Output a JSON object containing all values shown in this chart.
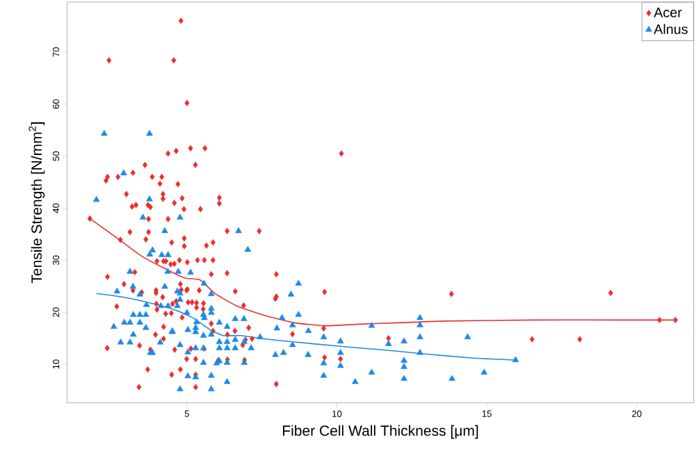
{
  "chart_data": {
    "type": "scatter",
    "xlabel": "Fiber Cell Wall Thickness [μm]",
    "ylabel": "Tensile Strength [N/mm$^{2}$]",
    "xlim": [
      1.0,
      21.9
    ],
    "ylim": [
      2.6,
      79.6
    ],
    "xticks": [
      5,
      10,
      15,
      20
    ],
    "yticks": [
      10,
      20,
      30,
      40,
      50,
      60,
      70
    ],
    "grid": false,
    "legend": "top right",
    "series": [
      {
        "name": "Acer",
        "color": "#e8302f",
        "marker": "diamond",
        "x": [
          1.76,
          4.8,
          2.4,
          4.56,
          5.0,
          10.15,
          5.12,
          5.6,
          4.37,
          4.64,
          5.28,
          3.6,
          2.3,
          2.35,
          2.7,
          3.84,
          4.16,
          3.2,
          4.1,
          4.7,
          4.2,
          4.2,
          4.84,
          6.08,
          6.08,
          4.58,
          2.98,
          3.17,
          3.3,
          3.7,
          3.78,
          4.9,
          5.45,
          4.37,
          3.72,
          3.1,
          3.72,
          6.34,
          7.41,
          3.63,
          4.91,
          4.91,
          4.49,
          5.87,
          5.65,
          2.78,
          5.35,
          5.58,
          5.87,
          5.01,
          4.75,
          4.0,
          4.22,
          4.3,
          4.46,
          4.58,
          6.34,
          5.81,
          7.98,
          2.35,
          3.26,
          2.9,
          3.2,
          3.49,
          3.97,
          3.97,
          4.78,
          4.81,
          4.99,
          5.01,
          5.41,
          6.61,
          9.59,
          13.82,
          19.13,
          2.66,
          4.19,
          4.52,
          4.64,
          5.04,
          5.17,
          5.32,
          5.32,
          5.55,
          5.54,
          3.98,
          4.0,
          4.29,
          4.48,
          4.84,
          6.89,
          7.95,
          7.98,
          9.56,
          5.81,
          4.22,
          5.87,
          6.6,
          7.06,
          6.35,
          3.95,
          4.22,
          3.42,
          2.34,
          3.78,
          4.59,
          5.13,
          5.57,
          6.86,
          6.95,
          7.17,
          8.52,
          11.72,
          16.51,
          18.1,
          20.76,
          21.29,
          3.69,
          4.99,
          5.29,
          6.05,
          6.35,
          6.92,
          9.59,
          10.12,
          4.49,
          4.78,
          5.29,
          7.98,
          3.4,
          5.29
        ],
        "values": [
          38.0,
          76.0,
          68.4,
          68.4,
          60.2,
          50.5,
          51.5,
          51.5,
          50.5,
          51.0,
          48.3,
          48.3,
          45.3,
          46.0,
          46.0,
          46.0,
          46.0,
          46.8,
          44.7,
          44.6,
          42.7,
          41.8,
          41.9,
          42.0,
          40.9,
          41.0,
          42.7,
          40.3,
          40.6,
          40.6,
          40.2,
          39.8,
          39.8,
          37.9,
          37.9,
          35.4,
          35.4,
          35.6,
          35.6,
          34.0,
          34.2,
          32.7,
          33.4,
          33.4,
          32.8,
          33.9,
          30.0,
          30.0,
          30.0,
          29.6,
          30.0,
          29.8,
          29.8,
          29.8,
          29.2,
          29.3,
          27.5,
          27.3,
          27.3,
          26.8,
          27.7,
          25.4,
          24.2,
          23.8,
          24.2,
          23.7,
          25.4,
          24.3,
          24.2,
          24.4,
          24.2,
          24.0,
          23.9,
          23.5,
          23.7,
          21.1,
          22.9,
          21.6,
          22.1,
          21.9,
          21.9,
          21.8,
          20.9,
          21.7,
          20.6,
          21.6,
          20.5,
          19.7,
          19.8,
          19.0,
          21.3,
          22.6,
          23.0,
          16.9,
          17.8,
          17.2,
          16.4,
          16.4,
          17.0,
          15.7,
          15.7,
          14.9,
          13.6,
          13.1,
          12.8,
          12.8,
          13.0,
          13.0,
          13.7,
          14.7,
          14.9,
          15.8,
          15.0,
          14.8,
          14.8,
          18.5,
          18.5,
          9.0,
          11.0,
          11.0,
          10.8,
          10.9,
          10.8,
          11.3,
          11.0,
          8.0,
          9.0,
          8.0,
          6.2,
          5.6,
          5.6
        ]
      },
      {
        "name": "Alnus",
        "color": "#1f8ae6",
        "marker": "triangle",
        "x": [
          2.24,
          3.75,
          2.89,
          1.98,
          3.75,
          3.53,
          4.77,
          4.26,
          6.72,
          3.76,
          3.85,
          4.16,
          4.37,
          7.03,
          3.1,
          4.36,
          4.71,
          5.12,
          5.57,
          8.72,
          3.2,
          4.26,
          2.67,
          4.68,
          3.43,
          4.77,
          5.81,
          8.47,
          2.56,
          2.91,
          3.21,
          3.43,
          3.63,
          3.1,
          3.43,
          3.63,
          3.21,
          2.79,
          3.1,
          3.65,
          4.13,
          4.37,
          4.68,
          4.77,
          5.0,
          5.32,
          5.55,
          5.81,
          5.81,
          5.58,
          6.08,
          6.34,
          5.29,
          5.03,
          4.51,
          6.61,
          6.9,
          7.44,
          8.0,
          8.17,
          8.52,
          8.72,
          9.05,
          9.56,
          10.12,
          11.16,
          11.72,
          12.24,
          12.77,
          12.77,
          12.77,
          12.77,
          14.36,
          15.96,
          14.91,
          13.84,
          12.24,
          12.24,
          12.24,
          11.16,
          10.61,
          10.12,
          10.12,
          9.56,
          9.56,
          9.04,
          8.22,
          7.95,
          8.52,
          7.14,
          6.91,
          6.91,
          6.61,
          6.61,
          6.34,
          6.34,
          6.34,
          6.34,
          6.08,
          6.08,
          6.08,
          5.99,
          5.81,
          5.81,
          5.81,
          5.55,
          5.55,
          5.55,
          5.29,
          5.29,
          5.29,
          5.03,
          5.03,
          4.77,
          4.77,
          4.51,
          4.11,
          3.78,
          3.85
        ],
        "values": [
          54.3,
          54.3,
          46.7,
          41.6,
          41.7,
          38.2,
          38.2,
          35.6,
          35.6,
          31.1,
          31.9,
          31.0,
          31.0,
          32.0,
          27.8,
          27.8,
          27.8,
          27.6,
          25.5,
          25.5,
          24.9,
          24.9,
          24.0,
          24.0,
          23.4,
          23.6,
          23.5,
          23.4,
          17.2,
          18.0,
          19.5,
          19.5,
          19.5,
          18.0,
          18.0,
          17.0,
          15.7,
          14.2,
          14.2,
          21.4,
          21.2,
          21.2,
          21.2,
          22.4,
          19.9,
          18.1,
          19.5,
          20.7,
          19.9,
          18.9,
          18.0,
          17.2,
          17.0,
          16.6,
          16.4,
          18.7,
          18.7,
          15.2,
          16.9,
          18.9,
          17.5,
          19.5,
          16.4,
          15.2,
          14.4,
          17.4,
          13.9,
          14.4,
          18.9,
          17.5,
          15.2,
          12.2,
          15.2,
          10.8,
          8.4,
          7.2,
          10.7,
          9.5,
          7.2,
          8.4,
          6.6,
          9.7,
          12.2,
          10.2,
          7.8,
          11.8,
          12.2,
          11.8,
          13.7,
          13.1,
          14.3,
          10.3,
          14.7,
          13.1,
          14.3,
          13.1,
          10.3,
          6.6,
          14.3,
          13.1,
          10.6,
          10.2,
          15.7,
          7.8,
          5.2,
          15.5,
          13.1,
          10.3,
          13.1,
          16.2,
          7.5,
          12.3,
          7.7,
          13.7,
          5.2,
          16.2,
          14.2,
          12.2,
          12.2
        ]
      },
      {
        "type": "line",
        "color": "#e8302f",
        "marker": "none",
        "x": [
          1.76,
          2.73,
          3.46,
          4.19,
          4.91,
          5.44,
          5.93,
          6.66,
          7.53,
          8.55,
          9.59,
          10.73,
          12.18,
          13.63,
          16.54,
          19.45,
          21.29
        ],
        "values": [
          38.0,
          34.0,
          30.9,
          28.6,
          26.6,
          26.2,
          23.6,
          21.2,
          19.5,
          18.0,
          17.4,
          17.7,
          18.0,
          18.3,
          18.5,
          18.5,
          18.5
        ]
      },
      {
        "type": "line",
        "color": "#1f8ae6",
        "marker": "none",
        "x": [
          1.98,
          2.88,
          3.9,
          4.62,
          5.2,
          5.78,
          6.22,
          6.8,
          7.53,
          8.55,
          10.0,
          11.45,
          12.91,
          14.5,
          15.96
        ],
        "values": [
          23.6,
          22.9,
          21.6,
          20.4,
          18.9,
          16.6,
          15.5,
          15.5,
          14.9,
          14.3,
          13.5,
          12.8,
          12.0,
          11.2,
          10.8
        ]
      }
    ]
  }
}
